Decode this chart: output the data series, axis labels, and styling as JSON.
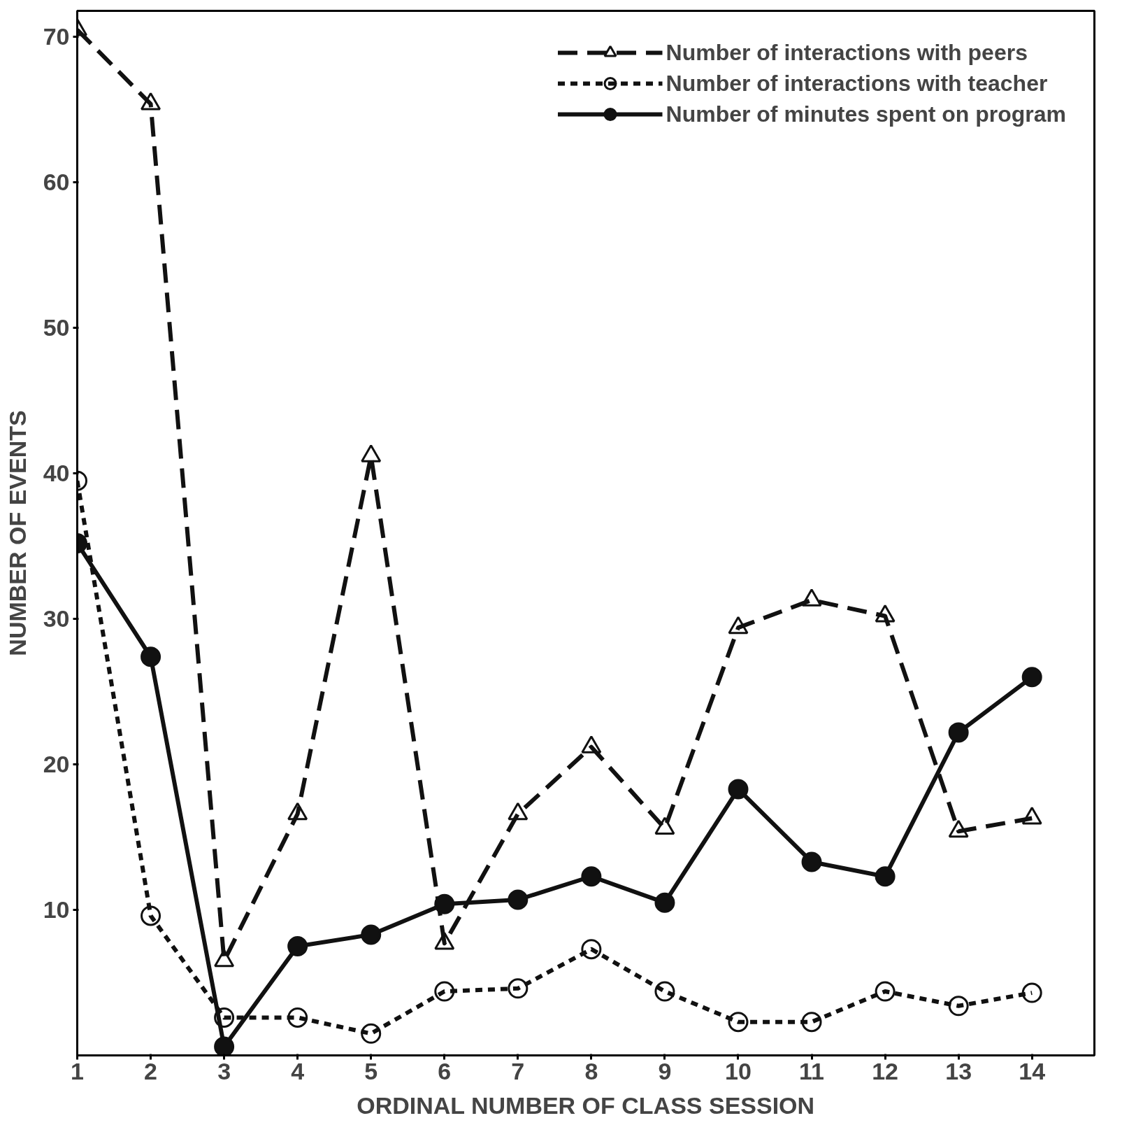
{
  "chart_data": {
    "type": "line",
    "xlabel": "ORDINAL NUMBER OF CLASS SESSION",
    "ylabel": "NUMBER OF EVENTS",
    "x": [
      1,
      2,
      3,
      4,
      5,
      6,
      7,
      8,
      9,
      10,
      11,
      12,
      13,
      14
    ],
    "xlim": [
      1,
      14.85
    ],
    "xticks": [
      1,
      2,
      3,
      4,
      5,
      6,
      7,
      8,
      9,
      10,
      11,
      12,
      13,
      14
    ],
    "ylim": [
      0,
      71.8
    ],
    "yticks": [
      10,
      20,
      30,
      40,
      50,
      60,
      70
    ],
    "grid": false,
    "legend": "top right",
    "series": [
      {
        "name": "Number of interactions with peers",
        "color": "#111111",
        "marker": "triangle",
        "line_style": "dashed",
        "values": [
          70.5,
          65.4,
          6.5,
          16.6,
          41.2,
          7.7,
          16.6,
          21.2,
          15.6,
          29.4,
          31.3,
          30.2,
          15.4,
          16.3
        ]
      },
      {
        "name": "Number of interactions with teacher",
        "color": "#111111",
        "marker": "circle",
        "line_style": "dotted",
        "values": [
          39.5,
          9.6,
          2.6,
          2.6,
          1.5,
          4.4,
          4.6,
          7.3,
          4.4,
          2.3,
          2.3,
          4.4,
          3.4,
          4.3
        ]
      },
      {
        "name": "Number of minutes spent on program",
        "color": "#111111",
        "marker": "circle",
        "line_style": "solid",
        "values": [
          35.2,
          27.4,
          0.6,
          7.5,
          8.3,
          10.4,
          10.7,
          12.3,
          10.5,
          18.3,
          13.3,
          12.3,
          22.2,
          26.0
        ]
      }
    ]
  }
}
